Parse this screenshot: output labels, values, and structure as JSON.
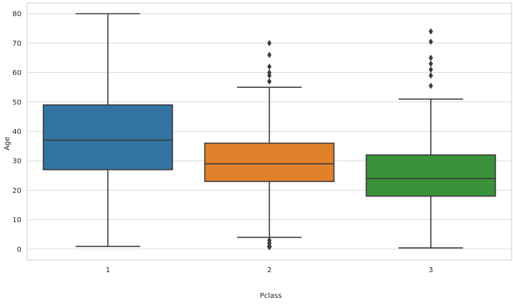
{
  "chart_data": {
    "type": "box",
    "title": "",
    "xlabel": "Pclass",
    "ylabel": "Age",
    "ylim": [
      -3.7,
      83.7
    ],
    "yticks": [
      0,
      10,
      20,
      30,
      40,
      50,
      60,
      70,
      80
    ],
    "grid": true,
    "categories": [
      "1",
      "2",
      "3"
    ],
    "boxes": [
      {
        "category": "1",
        "whisker_low": 0.92,
        "q1": 27,
        "median": 37,
        "q3": 49,
        "whisker_high": 80,
        "color": "#3274a1",
        "outliers": []
      },
      {
        "category": "2",
        "whisker_low": 4,
        "q1": 23,
        "median": 29,
        "q3": 36,
        "whisker_high": 55,
        "color": "#e1812c",
        "outliers": [
          0.67,
          0.83,
          0.83,
          1,
          1,
          2,
          2,
          3,
          3,
          57,
          57,
          59,
          60,
          62,
          66,
          70
        ]
      },
      {
        "category": "3",
        "whisker_low": 0.42,
        "q1": 18,
        "median": 24,
        "q3": 32,
        "whisker_high": 51,
        "color": "#3a923a",
        "outliers": [
          55.5,
          59,
          61,
          63,
          65,
          70.5,
          74
        ]
      }
    ],
    "line_color": "#3d3d3d",
    "outlier_color": "#3d3d3d",
    "grid_color": "#d9d9d9",
    "frame_color": "#cccccc"
  }
}
